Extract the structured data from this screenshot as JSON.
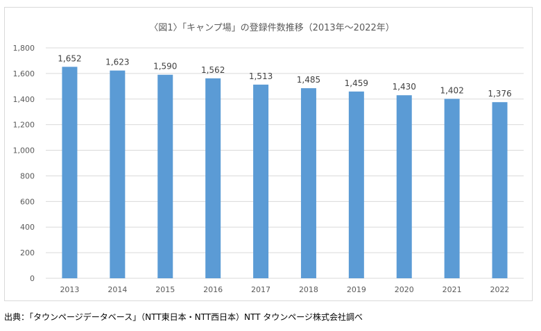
{
  "chart_data": {
    "type": "bar",
    "title": "〈図1〉「キャンプ場」の登録件数推移（2013年～2022年）",
    "categories": [
      "2013",
      "2014",
      "2015",
      "2016",
      "2017",
      "2018",
      "2019",
      "2020",
      "2021",
      "2022"
    ],
    "values": [
      1652,
      1623,
      1590,
      1562,
      1513,
      1485,
      1459,
      1430,
      1402,
      1376
    ],
    "data_labels": [
      "1,652",
      "1,623",
      "1,590",
      "1,562",
      "1,513",
      "1,485",
      "1,459",
      "1,430",
      "1,402",
      "1,376"
    ],
    "y_ticks": [
      0,
      200,
      400,
      600,
      800,
      1000,
      1200,
      1400,
      1600,
      1800
    ],
    "y_tick_labels": [
      "0",
      "200",
      "400",
      "600",
      "800",
      "1,000",
      "1,200",
      "1,400",
      "1,600",
      "1,800"
    ],
    "ylim": [
      0,
      1800
    ],
    "grid": true,
    "legend": "none",
    "bar_color": "#5b9bd5",
    "grid_color": "#d9d9d9"
  },
  "source": "出典：「タウンページデータベース」（NTT東日本・NTT西日本）NTT タウンページ株式会社調べ"
}
